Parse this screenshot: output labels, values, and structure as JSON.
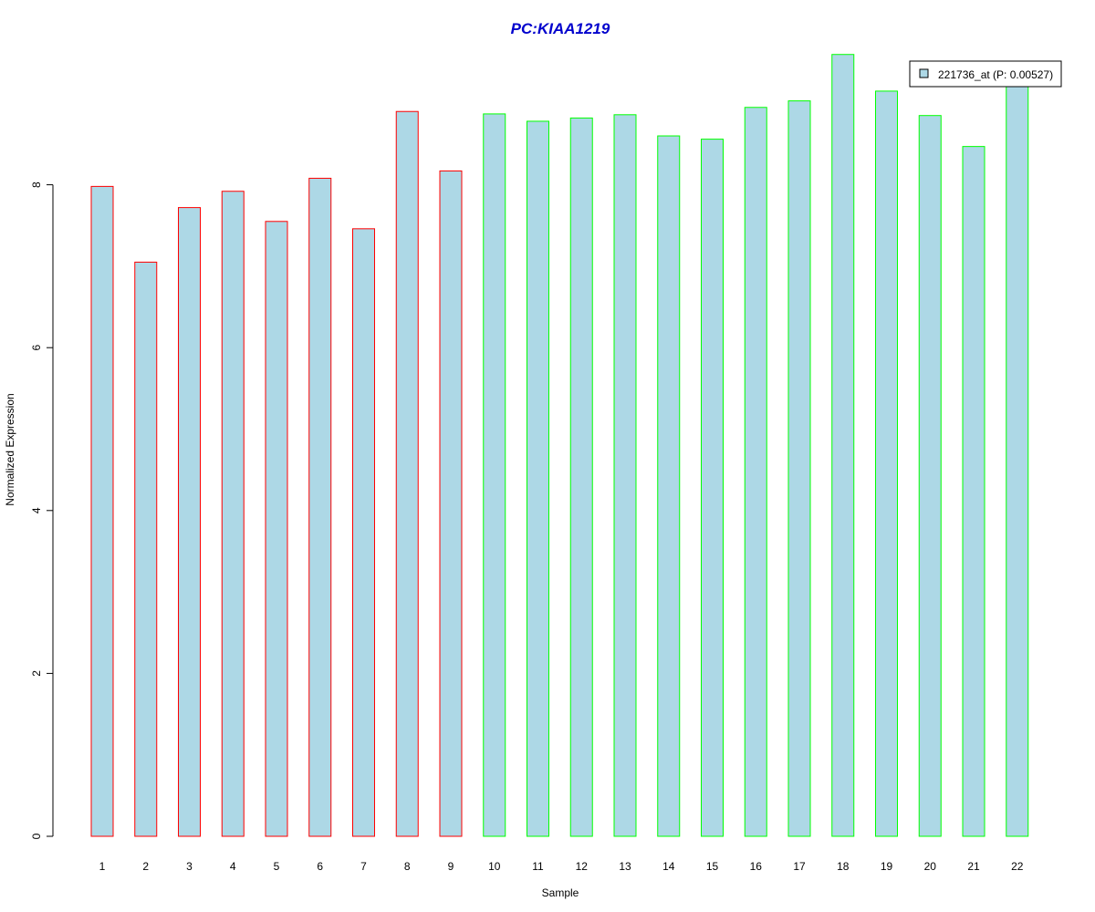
{
  "chart_data": {
    "type": "bar",
    "title": "PC:KIAA1219",
    "xlabel": "Sample",
    "ylabel": "Normalized Expression",
    "ylim": [
      0,
      9.7
    ],
    "yticks": [
      0,
      2,
      4,
      6,
      8
    ],
    "categories": [
      "1",
      "2",
      "3",
      "4",
      "5",
      "6",
      "7",
      "8",
      "9",
      "10",
      "11",
      "12",
      "13",
      "14",
      "15",
      "16",
      "17",
      "18",
      "19",
      "20",
      "21",
      "22"
    ],
    "series": [
      {
        "name": "221736_at (P: 0.00527)",
        "values": [
          7.98,
          7.05,
          7.72,
          7.92,
          7.55,
          8.08,
          7.46,
          8.9,
          8.17,
          8.87,
          8.78,
          8.82,
          8.86,
          8.6,
          8.56,
          8.95,
          9.03,
          9.6,
          9.15,
          8.85,
          8.47,
          9.3
        ]
      }
    ],
    "groups": [
      "red",
      "red",
      "red",
      "red",
      "red",
      "red",
      "red",
      "red",
      "red",
      "green",
      "green",
      "green",
      "green",
      "green",
      "green",
      "green",
      "green",
      "green",
      "green",
      "green",
      "green",
      "green"
    ],
    "colors": {
      "fill": "#add8e6",
      "group_red": "#ff0000",
      "group_green": "#00ff00",
      "title": "#0000cd"
    },
    "legend": {
      "position": "top-right",
      "label": "221736_at (P: 0.00527)"
    },
    "grid": false
  }
}
